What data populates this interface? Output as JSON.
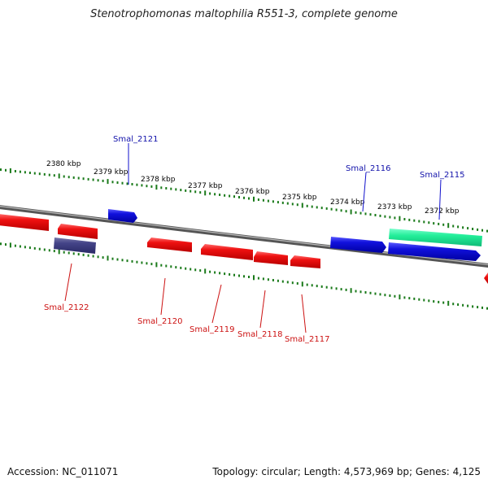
{
  "title": "Stenotrophomonas maltophilia R551-3, complete genome",
  "footer": {
    "accession": "Accession: NC_011071",
    "summary": "Topology: circular; Length: 4,573,969 bp; Genes: 4,125"
  },
  "ruler": {
    "unit": "kbp",
    "labels": [
      "2380 kbp",
      "2379 kbp",
      "2378 kbp",
      "2377 kbp",
      "2376 kbp",
      "2375 kbp",
      "2374 kbp",
      "2373 kbp",
      "2372 kbp"
    ]
  },
  "colors": {
    "genome_line": "#777777",
    "tick_marks": "#1a7a1a",
    "reverse_strand_gene": "#ee1111",
    "forward_strand_gene": "#1111dd",
    "dark_gene": "#444488",
    "rna_feature": "#22ee99",
    "forward_label": "#1111aa",
    "reverse_label": "#cc1111"
  },
  "genes": [
    {
      "name": "Smal_2121",
      "strand": "forward"
    },
    {
      "name": "Smal_2116",
      "strand": "forward"
    },
    {
      "name": "Smal_2115",
      "strand": "forward"
    },
    {
      "name": "Smal_2122",
      "strand": "reverse"
    },
    {
      "name": "Smal_2120",
      "strand": "reverse"
    },
    {
      "name": "Smal_2119",
      "strand": "reverse"
    },
    {
      "name": "Smal_2118",
      "strand": "reverse"
    },
    {
      "name": "Smal_2117",
      "strand": "reverse"
    }
  ]
}
